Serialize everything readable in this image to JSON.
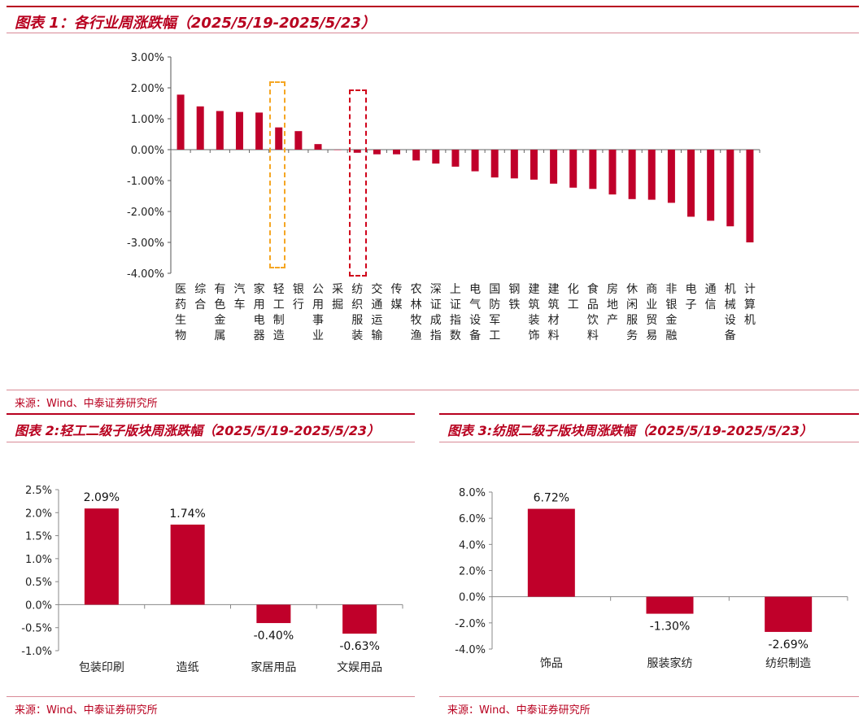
{
  "figure1": {
    "title": "图表 1：各行业周涨跌幅（2025/5/19-2025/5/23）",
    "source": "来源：Wind、中泰证券研究所",
    "highlight_colors": {
      "light_industry": "#f5a623",
      "textile": "#d0021b"
    }
  },
  "figure2": {
    "title": "图表 2:轻工二级子版块周涨跌幅（2025/5/19-2025/5/23）",
    "source": "来源：Wind、中泰证券研究所"
  },
  "figure3": {
    "title": "图表 3:纺服二级子版块周涨跌幅（2025/5/19-2025/5/23）",
    "source": "来源：Wind、中泰证券研究所"
  },
  "colors": {
    "bar": "#c0002a",
    "accent": "#b8001f"
  },
  "chart_data": [
    {
      "type": "bar",
      "title": "各行业周涨跌幅（2025/5/19-2025/5/23）",
      "ylim": [
        -4.0,
        3.0
      ],
      "yticks": [
        "3.00%",
        "2.00%",
        "1.00%",
        "0.00%",
        "-1.00%",
        "-2.00%",
        "-3.00%",
        "-4.00%"
      ],
      "ytick_values": [
        3,
        2,
        1,
        0,
        -1,
        -2,
        -3,
        -4
      ],
      "categories": [
        "医药生物",
        "综合",
        "有色金属",
        "汽车",
        "家用电器",
        "轻工制造",
        "银行",
        "公用事业",
        "采掘",
        "纺织服装",
        "交通运输",
        "传媒",
        "农林牧渔",
        "深证成指",
        "上证指数",
        "电气设备",
        "国防军工",
        "钢铁",
        "建筑装饰",
        "建筑材料",
        "化工",
        "食品饮料",
        "房地产",
        "休闲服务",
        "商业贸易",
        "非银金融",
        "电子",
        "通信",
        "机械设备",
        "计算机"
      ],
      "values": [
        1.78,
        1.4,
        1.25,
        1.22,
        1.2,
        0.72,
        0.6,
        0.18,
        0.0,
        -0.1,
        -0.15,
        -0.15,
        -0.35,
        -0.45,
        -0.55,
        -0.7,
        -0.9,
        -0.93,
        -0.97,
        -1.1,
        -1.23,
        -1.27,
        -1.45,
        -1.6,
        -1.62,
        -1.72,
        -2.17,
        -2.3,
        -2.48,
        -3.0
      ]
    },
    {
      "type": "bar",
      "title": "轻工二级子版块周涨跌幅（2025/5/19-2025/5/23）",
      "ylim": [
        -1.0,
        2.5
      ],
      "yticks": [
        "2.5%",
        "2.0%",
        "1.5%",
        "1.0%",
        "0.5%",
        "0.0%",
        "-0.5%",
        "-1.0%"
      ],
      "ytick_values": [
        2.5,
        2.0,
        1.5,
        1.0,
        0.5,
        0.0,
        -0.5,
        -1.0
      ],
      "categories": [
        "包装印刷",
        "造纸",
        "家居用品",
        "文娱用品"
      ],
      "values": [
        2.09,
        1.74,
        -0.4,
        -0.63
      ],
      "data_labels": [
        "2.09%",
        "1.74%",
        "-0.40%",
        "-0.63%"
      ]
    },
    {
      "type": "bar",
      "title": "纺服二级子版块周涨跌幅（2025/5/19-2025/5/23）",
      "ylim": [
        -4.0,
        8.0
      ],
      "yticks": [
        "8.0%",
        "6.0%",
        "4.0%",
        "2.0%",
        "0.0%",
        "-2.0%",
        "-4.0%"
      ],
      "ytick_values": [
        8,
        6,
        4,
        2,
        0,
        -2,
        -4
      ],
      "categories": [
        "饰品",
        "服装家纺",
        "纺织制造"
      ],
      "values": [
        6.72,
        -1.3,
        -2.69
      ],
      "data_labels": [
        "6.72%",
        "-1.30%",
        "-2.69%"
      ]
    }
  ]
}
